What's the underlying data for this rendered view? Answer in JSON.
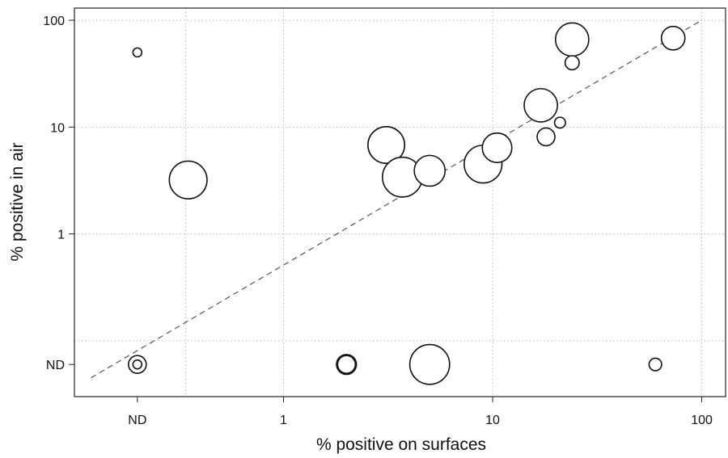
{
  "chart_data": {
    "type": "scatter",
    "subtype": "bubble",
    "title": "",
    "xlabel": "% positive on surfaces",
    "ylabel": "% positive in air",
    "x_scale": "log",
    "y_scale": "log",
    "xlim": [
      0.1,
      130
    ],
    "ylim": [
      0.03,
      130
    ],
    "x_ticks": [
      {
        "value": 0.2,
        "label": "ND"
      },
      {
        "value": 1,
        "label": "1"
      },
      {
        "value": 10,
        "label": "10"
      },
      {
        "value": 100,
        "label": "100"
      }
    ],
    "y_ticks": [
      {
        "value": 0.06,
        "label": "ND"
      },
      {
        "value": 1,
        "label": "1"
      },
      {
        "value": 10,
        "label": "10"
      },
      {
        "value": 100,
        "label": "100"
      }
    ],
    "x_gridlines": [
      0.34,
      1,
      10,
      100
    ],
    "y_gridlines": [
      0.1,
      1,
      10,
      100
    ],
    "grid": true,
    "reference_line": {
      "style": "dashed",
      "points": [
        [
          0.12,
          0.045
        ],
        [
          100,
          100
        ]
      ]
    },
    "points": [
      {
        "x": 0.2,
        "y": 50,
        "size": 1
      },
      {
        "x": 0.2,
        "y": 0.06,
        "size": 4
      },
      {
        "x": 0.2,
        "y": 0.06,
        "size": 1
      },
      {
        "x": 0.35,
        "y": 3.2,
        "size": 18
      },
      {
        "x": 2.0,
        "y": 0.06,
        "size": 5
      },
      {
        "x": 2.0,
        "y": 0.06,
        "size": 4
      },
      {
        "x": 3.1,
        "y": 6.8,
        "size": 17
      },
      {
        "x": 3.7,
        "y": 3.4,
        "size": 20
      },
      {
        "x": 5.0,
        "y": 3.9,
        "size": 12
      },
      {
        "x": 5.0,
        "y": 0.06,
        "size": 20
      },
      {
        "x": 9.0,
        "y": 4.5,
        "size": 18
      },
      {
        "x": 10.5,
        "y": 6.4,
        "size": 11
      },
      {
        "x": 17.0,
        "y": 16,
        "size": 14
      },
      {
        "x": 18.0,
        "y": 8.1,
        "size": 4
      },
      {
        "x": 21.0,
        "y": 11,
        "size": 1.5
      },
      {
        "x": 24.0,
        "y": 66,
        "size": 14
      },
      {
        "x": 24.0,
        "y": 40,
        "size": 2.5
      },
      {
        "x": 60.0,
        "y": 0.06,
        "size": 2
      },
      {
        "x": 73.0,
        "y": 68,
        "size": 7
      }
    ]
  }
}
